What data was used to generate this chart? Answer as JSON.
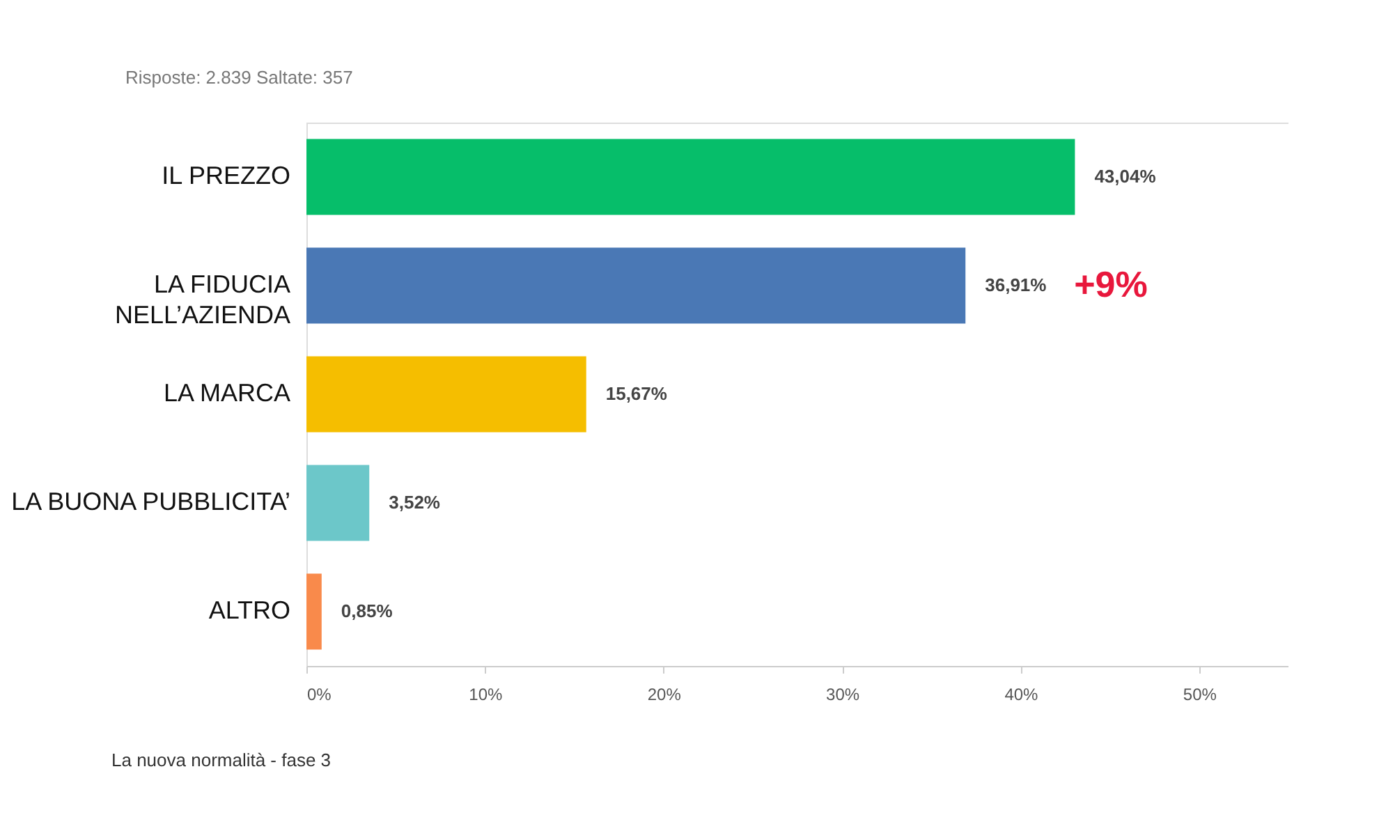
{
  "chart_data": {
    "type": "bar",
    "orientation": "horizontal",
    "subtitle": "Risposte: 2.839     Saltate: 357",
    "categories": [
      "IL PREZZO",
      "LA FIDUCIA\nNELL’AZIENDA",
      "LA MARCA",
      "LA BUONA PUBBLICITA’",
      "ALTRO"
    ],
    "values": [
      43.04,
      36.91,
      15.67,
      3.52,
      0.85
    ],
    "colors": [
      "#06be6a",
      "#4a78b5",
      "#f5be00",
      "#6cc7c9",
      "#f98a4b"
    ],
    "value_labels": [
      "43,04%",
      "36,91%",
      "15,67%",
      "3,52%",
      "0,85%"
    ],
    "xlim": [
      0,
      55
    ],
    "xticks": [
      {
        "value": 0,
        "label": "0%"
      },
      {
        "value": 10,
        "label": "10%"
      },
      {
        "value": 20,
        "label": "20%"
      },
      {
        "value": 30,
        "label": "30%"
      },
      {
        "value": 40,
        "label": "40%"
      },
      {
        "value": 50,
        "label": "50%"
      }
    ],
    "grid": false,
    "legend": false,
    "annotations": [
      {
        "text": "+9%",
        "x": 36.91,
        "y": "LA FIDUCIA\nNELL’AZIENDA"
      },
      "La nuova normalità - fase 3"
    ]
  }
}
